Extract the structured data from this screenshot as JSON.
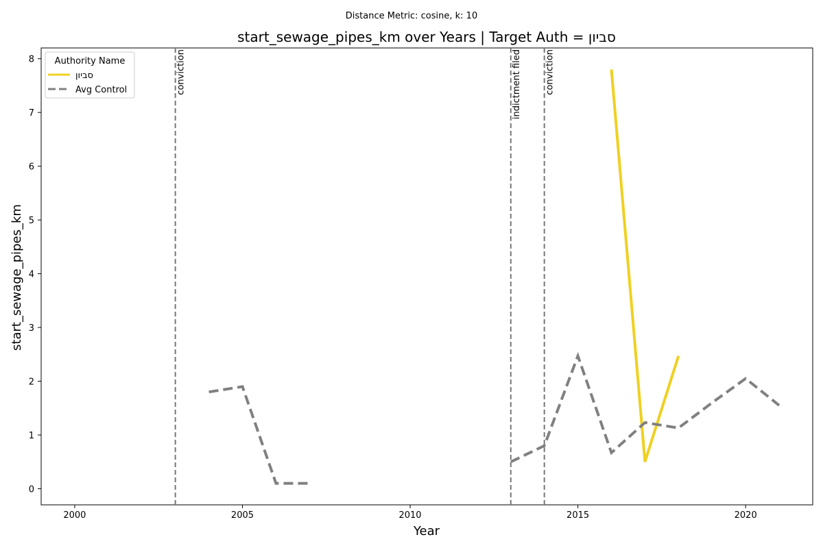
{
  "chart_data": {
    "type": "line",
    "suptitle": "Distance Metric: cosine, k: 10",
    "title": "start_sewage_pipes_km over Years | Target Auth = סביון",
    "xlabel": "Year",
    "ylabel": "start_sewage_pipes_km",
    "xlim": [
      1999.0,
      2022.0
    ],
    "ylim": [
      -0.3,
      8.2
    ],
    "xticks": [
      2000,
      2005,
      2010,
      2015,
      2020
    ],
    "yticks": [
      0,
      1,
      2,
      3,
      4,
      5,
      6,
      7,
      8
    ],
    "grid": false,
    "legend": {
      "title": "Authority Name",
      "placement": "top-left"
    },
    "series": [
      {
        "name": "סביון",
        "color": "#f0d020",
        "style": "solid",
        "points": [
          [
            2016,
            7.8
          ],
          [
            2017,
            0.5
          ],
          [
            2018,
            2.47
          ]
        ]
      },
      {
        "name": "Avg Control",
        "color": "#808080",
        "style": "dashed",
        "segments": [
          [
            [
              2004,
              1.8
            ],
            [
              2005,
              1.9
            ],
            [
              2006,
              0.1
            ],
            [
              2007,
              0.1
            ]
          ],
          [
            [
              2013,
              0.5
            ],
            [
              2014,
              0.8
            ],
            [
              2015,
              2.47
            ],
            [
              2016,
              0.67
            ],
            [
              2017,
              1.23
            ],
            [
              2018,
              1.13
            ],
            [
              2019,
              1.6
            ],
            [
              2020,
              2.05
            ],
            [
              2021,
              1.55
            ]
          ]
        ]
      }
    ],
    "events": [
      {
        "x": 2003,
        "label": "conviction"
      },
      {
        "x": 2013,
        "label": "indictment filed"
      },
      {
        "x": 2014,
        "label": "conviction"
      }
    ]
  }
}
